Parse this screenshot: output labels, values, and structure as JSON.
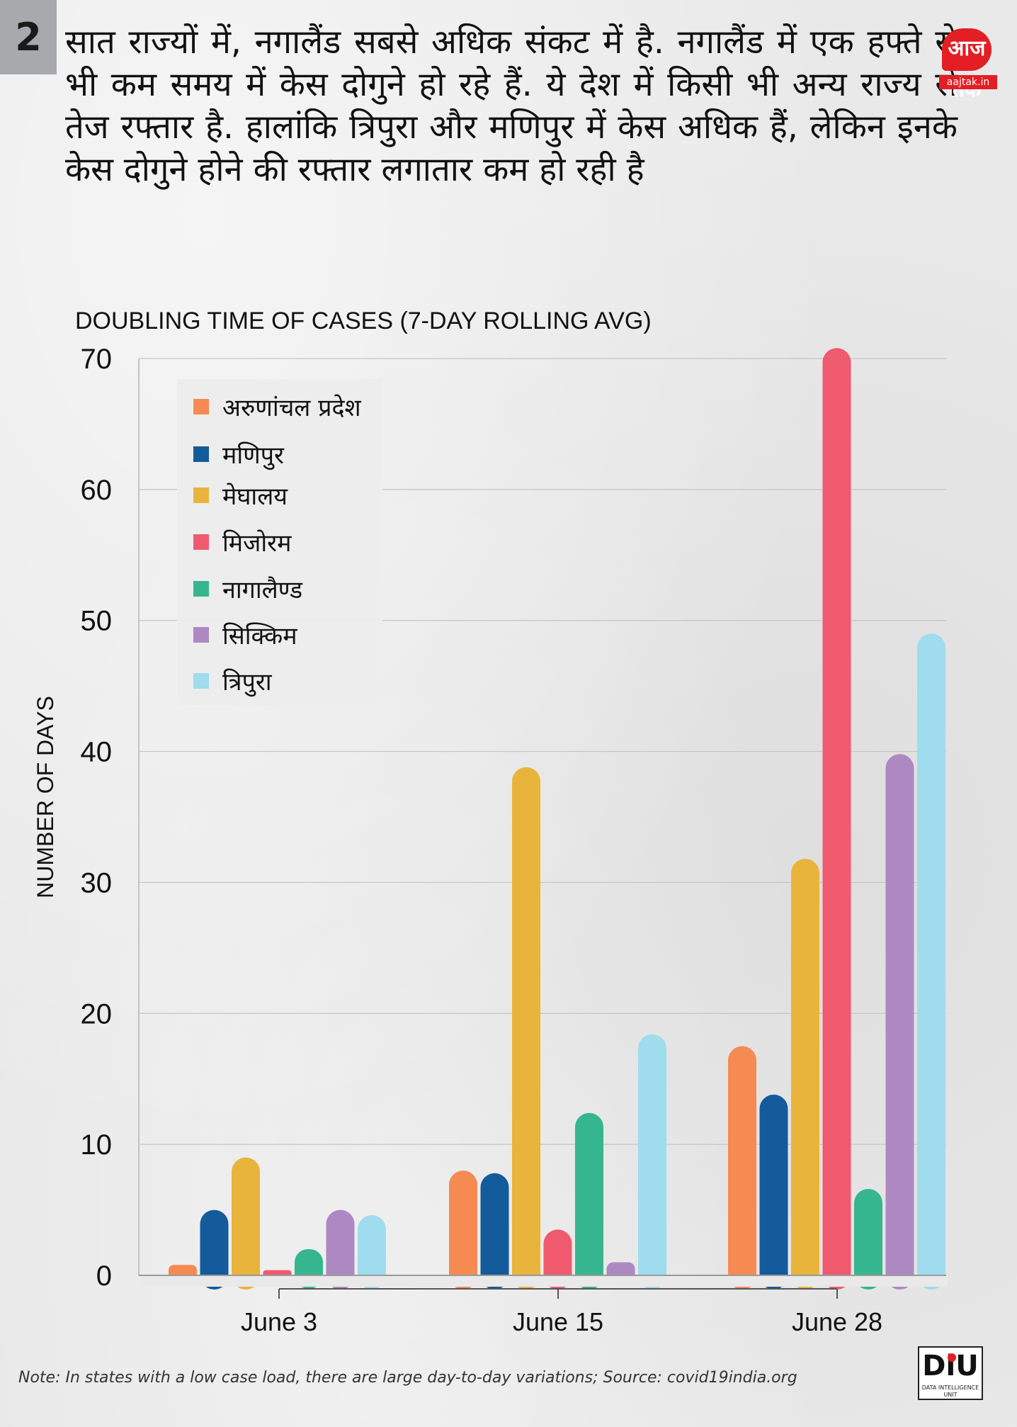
{
  "section_number": "2",
  "headline": "सात राज्यों में, नगालैंड सबसे अधिक संकट में है. नगालैंड में एक हफ्ते से भी कम समय में केस दोगुने हो रहे हैं. ये देश में किसी भी अन्य राज्य से तेज रफ्तार है. हालांकि त्रिपुरा और मणिपुर में केस अधिक हैं, लेकिन इनके केस दोगुने होने की रफ्तार लगातार कम हो रही है",
  "logo": {
    "mark": "आज तक",
    "url": "aajtak.in"
  },
  "chart_data": {
    "type": "bar",
    "title": "DOUBLING TIME OF CASES (7-DAY ROLLING AVG)",
    "xlabel": "",
    "ylabel": "NUMBER OF DAYS",
    "ylim": [
      0,
      70
    ],
    "yticks": [
      0,
      10,
      20,
      30,
      40,
      50,
      60,
      70
    ],
    "grid": true,
    "legend_position": "top-left",
    "categories": [
      "June 3",
      "June 15",
      "June 28"
    ],
    "series": [
      {
        "name": "अरुणांचल प्रदेश",
        "color": "#f58b52",
        "values": [
          0.8,
          8,
          17.5
        ]
      },
      {
        "name": "मणिपुर",
        "color": "#145b9b",
        "values": [
          5,
          7.8,
          13.8
        ]
      },
      {
        "name": "मेघालय",
        "color": "#e8b43c",
        "values": [
          9,
          38.8,
          31.8
        ]
      },
      {
        "name": "मिजोरम",
        "color": "#f05a6e",
        "values": [
          0.4,
          3.5,
          70.8
        ]
      },
      {
        "name": "नागालैण्ड",
        "color": "#35b68f",
        "values": [
          2,
          12.4,
          6.6
        ]
      },
      {
        "name": "सिक्किम",
        "color": "#ae89c1",
        "values": [
          5,
          1,
          39.8
        ]
      },
      {
        "name": "त्रिपुरा",
        "color": "#9fdcee",
        "values": [
          4.6,
          18.4,
          49
        ]
      }
    ]
  },
  "footnote": "Note: In states with a low case load, there are large day-to-day variations; Source: covid19india.org",
  "badge": {
    "text": "DiU",
    "tagline": "DATA INTELLIGENCE UNIT"
  }
}
